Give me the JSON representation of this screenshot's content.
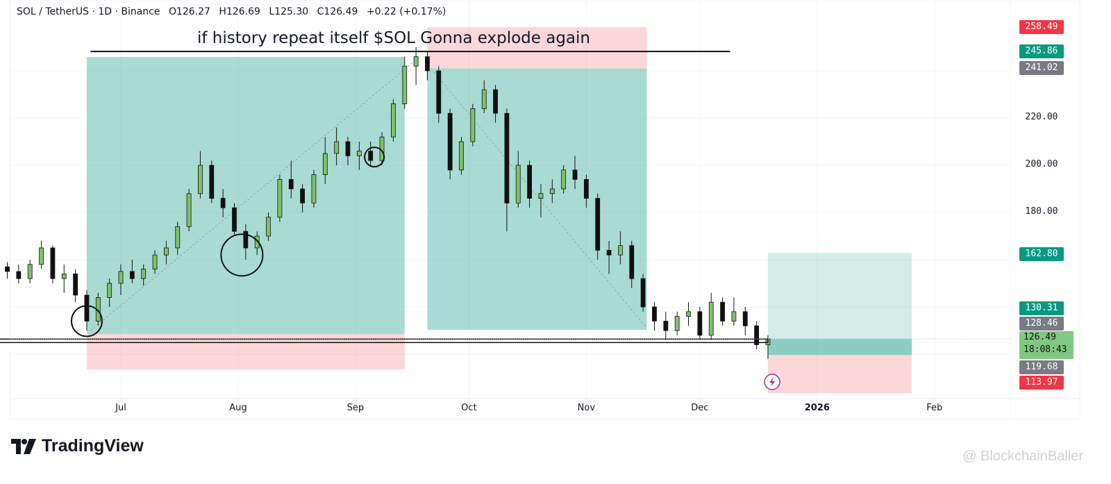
{
  "header": {
    "symbol": "SOL / TetherUS · 1D · Binance",
    "open": "O126.27",
    "high": "H126.69",
    "low": "L125.30",
    "close": "C126.49",
    "change": "+0.22 (+0.17%)"
  },
  "footer": {
    "logo": "TradingView",
    "watermark": "@ BlockchainBaller"
  },
  "colors": {
    "up": "#7dc26b",
    "down": "#111111",
    "profit": "#089981",
    "loss": "#f23645",
    "neutral": "#787b86",
    "current": "#81c784",
    "alert": "#9c27b0"
  },
  "chart_data": {
    "type": "candlestick",
    "title": "",
    "annotation": "if history repeat itself $SOL Gonna explode again",
    "x_ticks": [
      {
        "label": "Jul",
        "date": "2025-07-01"
      },
      {
        "label": "Aug",
        "date": "2025-08-01"
      },
      {
        "label": "Sep",
        "date": "2025-09-01"
      },
      {
        "label": "Oct",
        "date": "2025-10-01"
      },
      {
        "label": "Nov",
        "date": "2025-11-01"
      },
      {
        "label": "Dec",
        "date": "2025-12-01"
      },
      {
        "label": "2026",
        "date": "2026-01-01"
      },
      {
        "label": "Feb",
        "date": "2026-02-01"
      }
    ],
    "y_ticks": [
      "220.00",
      "200.00",
      "180.00"
    ],
    "price_labels": [
      {
        "value": "258.49",
        "kind": "loss"
      },
      {
        "value": "245.86",
        "kind": "profit"
      },
      {
        "value": "241.02",
        "kind": "neutral"
      },
      {
        "value": "162.80",
        "kind": "profit"
      },
      {
        "value": "130.31",
        "kind": "profit"
      },
      {
        "value": "128.46",
        "kind": "neutral"
      },
      {
        "value": "126.49",
        "kind": "current",
        "countdown": "18:08:43"
      },
      {
        "value": "119.68",
        "kind": "neutral"
      },
      {
        "value": "113.97",
        "kind": "loss"
      }
    ],
    "positions": [
      {
        "type": "long",
        "start": "2025-06-22",
        "end": "2025-09-14",
        "entry": 128.46,
        "target": 245.86,
        "stop": 113.5
      },
      {
        "type": "short",
        "start": "2025-09-20",
        "end": "2025-11-17",
        "entry": 241.02,
        "target": 130.31,
        "stop": 258.49
      },
      {
        "type": "long",
        "start": "2025-12-19",
        "end": "2026-01-26",
        "entry": 119.68,
        "target": 162.8,
        "stop": 113.97,
        "current": 126.49
      }
    ],
    "hlines": [
      {
        "start": "2025-06-23",
        "end": "2025-12-09",
        "price": 248.2,
        "style": "solid"
      },
      {
        "start": "2025-06-07",
        "end": "2025-12-19",
        "price": 125.5,
        "style": "double"
      }
    ],
    "trendlines": [
      {
        "from": [
          "2025-06-23",
          130
        ],
        "to": [
          "2025-09-18",
          246
        ]
      },
      {
        "from": [
          "2025-09-21",
          241
        ],
        "to": [
          "2025-11-17",
          131
        ]
      }
    ],
    "circles": [
      {
        "date": "2025-06-22",
        "price": 134
      },
      {
        "date": "2025-08-02",
        "price": 162
      },
      {
        "date": "2025-09-06",
        "price": 203.5
      }
    ],
    "candles": [
      [
        "2025-06-01",
        157,
        159,
        152,
        155
      ],
      [
        "2025-06-04",
        155,
        158,
        150,
        152
      ],
      [
        "2025-06-07",
        152,
        160,
        150,
        158
      ],
      [
        "2025-06-10",
        158,
        168,
        156,
        165
      ],
      [
        "2025-06-13",
        165,
        166,
        150,
        152
      ],
      [
        "2025-06-16",
        152,
        158,
        146,
        154
      ],
      [
        "2025-06-19",
        154,
        156,
        142,
        145
      ],
      [
        "2025-06-22",
        145,
        147,
        130,
        134
      ],
      [
        "2025-06-25",
        134,
        146,
        132,
        144
      ],
      [
        "2025-06-28",
        144,
        152,
        140,
        150
      ],
      [
        "2025-07-01",
        150,
        158,
        145,
        155
      ],
      [
        "2025-07-04",
        155,
        160,
        150,
        152
      ],
      [
        "2025-07-07",
        152,
        158,
        149,
        156
      ],
      [
        "2025-07-10",
        156,
        164,
        154,
        162
      ],
      [
        "2025-07-13",
        162,
        168,
        158,
        165
      ],
      [
        "2025-07-16",
        165,
        176,
        162,
        174
      ],
      [
        "2025-07-19",
        174,
        190,
        172,
        188
      ],
      [
        "2025-07-22",
        188,
        206,
        186,
        200
      ],
      [
        "2025-07-25",
        200,
        202,
        184,
        186
      ],
      [
        "2025-07-28",
        186,
        190,
        178,
        182
      ],
      [
        "2025-07-31",
        182,
        184,
        170,
        172
      ],
      [
        "2025-08-03",
        172,
        175,
        160,
        165
      ],
      [
        "2025-08-06",
        165,
        172,
        162,
        170
      ],
      [
        "2025-08-09",
        170,
        180,
        168,
        178
      ],
      [
        "2025-08-12",
        178,
        196,
        176,
        194
      ],
      [
        "2025-08-15",
        194,
        202,
        186,
        190
      ],
      [
        "2025-08-18",
        190,
        192,
        180,
        184
      ],
      [
        "2025-08-21",
        184,
        198,
        182,
        196
      ],
      [
        "2025-08-24",
        196,
        212,
        192,
        205
      ],
      [
        "2025-08-27",
        205,
        216,
        200,
        210
      ],
      [
        "2025-08-30",
        210,
        212,
        200,
        204
      ],
      [
        "2025-09-02",
        204,
        210,
        198,
        206
      ],
      [
        "2025-09-05",
        206,
        210,
        200,
        202
      ],
      [
        "2025-09-08",
        202,
        214,
        200,
        212
      ],
      [
        "2025-09-11",
        212,
        228,
        210,
        226
      ],
      [
        "2025-09-14",
        226,
        246,
        224,
        242
      ],
      [
        "2025-09-17",
        242,
        250,
        234,
        246
      ],
      [
        "2025-09-20",
        246,
        248,
        236,
        240
      ],
      [
        "2025-09-23",
        240,
        242,
        218,
        222
      ],
      [
        "2025-09-26",
        222,
        224,
        194,
        198
      ],
      [
        "2025-09-29",
        198,
        212,
        196,
        210
      ],
      [
        "2025-10-02",
        210,
        226,
        208,
        224
      ],
      [
        "2025-10-05",
        224,
        236,
        222,
        232
      ],
      [
        "2025-10-08",
        232,
        234,
        218,
        222
      ],
      [
        "2025-10-11",
        222,
        224,
        172,
        184
      ],
      [
        "2025-10-14",
        184,
        206,
        182,
        200
      ],
      [
        "2025-10-17",
        200,
        202,
        182,
        186
      ],
      [
        "2025-10-20",
        186,
        192,
        178,
        188
      ],
      [
        "2025-10-23",
        188,
        194,
        184,
        190
      ],
      [
        "2025-10-26",
        190,
        200,
        188,
        198
      ],
      [
        "2025-10-29",
        198,
        204,
        190,
        194
      ],
      [
        "2025-11-01",
        194,
        196,
        182,
        186
      ],
      [
        "2025-11-04",
        186,
        188,
        160,
        164
      ],
      [
        "2025-11-07",
        164,
        168,
        154,
        162
      ],
      [
        "2025-11-10",
        162,
        172,
        158,
        166
      ],
      [
        "2025-11-13",
        166,
        168,
        148,
        152
      ],
      [
        "2025-11-16",
        152,
        154,
        138,
        140
      ],
      [
        "2025-11-19",
        140,
        142,
        130,
        134
      ],
      [
        "2025-11-22",
        134,
        138,
        126,
        130
      ],
      [
        "2025-11-25",
        130,
        138,
        128,
        136
      ],
      [
        "2025-11-28",
        136,
        142,
        132,
        138
      ],
      [
        "2025-12-01",
        138,
        140,
        126,
        128
      ],
      [
        "2025-12-04",
        128,
        146,
        126,
        142
      ],
      [
        "2025-12-07",
        142,
        144,
        132,
        134
      ],
      [
        "2025-12-10",
        134,
        144,
        132,
        138
      ],
      [
        "2025-12-13",
        138,
        140,
        128,
        132
      ],
      [
        "2025-12-16",
        132,
        134,
        122,
        124
      ],
      [
        "2025-12-19",
        124,
        128,
        118,
        126.49
      ]
    ],
    "grid": true
  }
}
